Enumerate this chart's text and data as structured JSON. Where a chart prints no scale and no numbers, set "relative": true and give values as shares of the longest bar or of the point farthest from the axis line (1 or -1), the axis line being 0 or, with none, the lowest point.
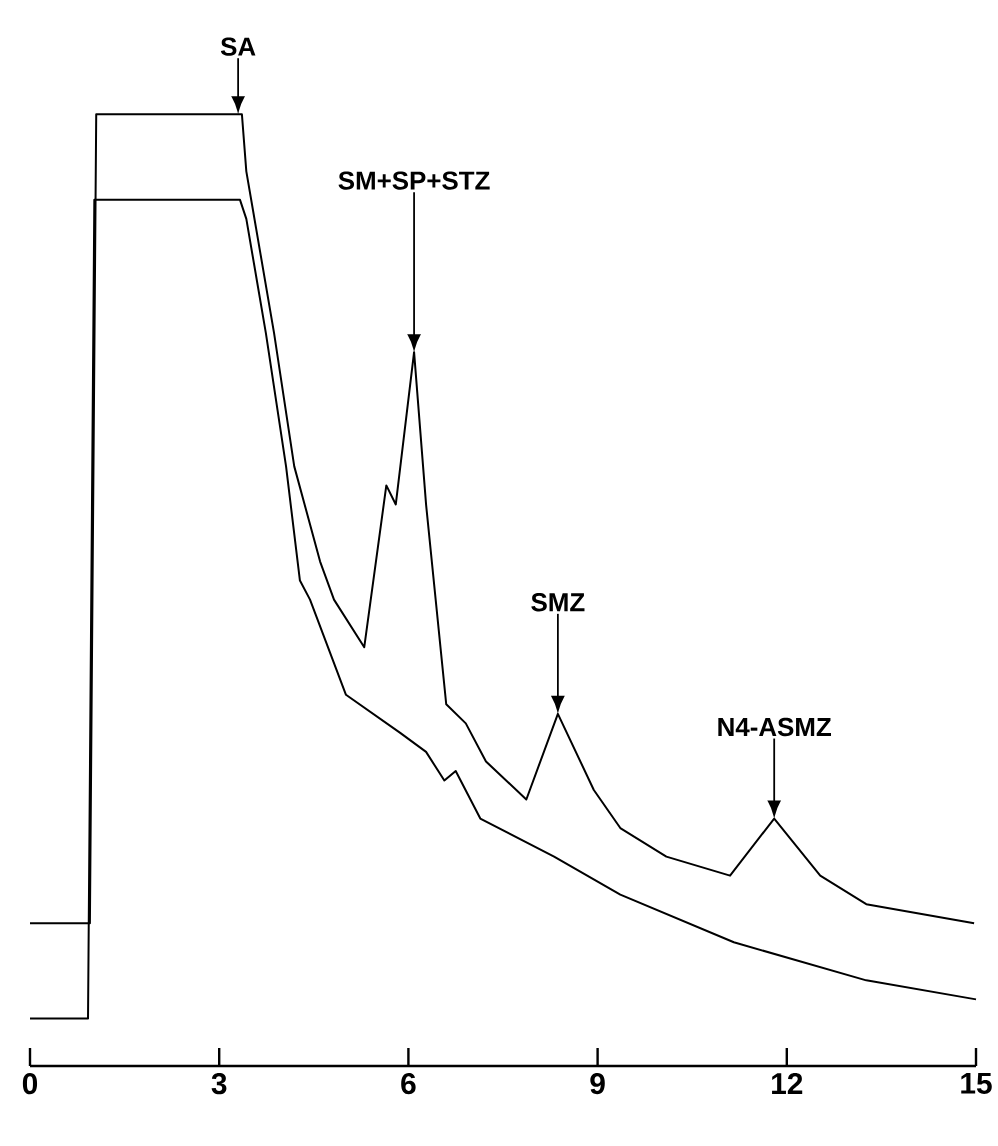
{
  "chart_data": {
    "type": "line",
    "relative": true,
    "tick_labels": "x",
    "xlim": [
      0,
      15
    ],
    "xticks": [
      0,
      3,
      6,
      9,
      12,
      15
    ],
    "series": [
      {
        "color": "#000000",
        "x": [
          0,
          0.95,
          1.05,
          3.36,
          3.43,
          3.87,
          4.19,
          4.6,
          4.82,
          5.3,
          5.65,
          5.8,
          6.09,
          6.28,
          6.6,
          6.91,
          7.23,
          7.87,
          8.37,
          8.94,
          9.36,
          10.09,
          11.1,
          11.8,
          12.53,
          13.26,
          14.97
        ],
        "values": [
          0.15,
          0.15,
          1.0,
          1.0,
          0.94,
          0.77,
          0.63,
          0.53,
          0.49,
          0.44,
          0.61,
          0.59,
          0.75,
          0.59,
          0.38,
          0.36,
          0.32,
          0.28,
          0.37,
          0.29,
          0.25,
          0.22,
          0.2,
          0.26,
          0.2,
          0.17,
          0.15
        ]
      },
      {
        "color": "#000000",
        "x": [
          0,
          0.92,
          1.02,
          3.33,
          3.43,
          3.74,
          4.06,
          4.28,
          4.44,
          5.01,
          5.87,
          6.28,
          6.57,
          6.75,
          7.14,
          8.31,
          9.36,
          11.16,
          13.26,
          15
        ],
        "values": [
          0.05,
          0.05,
          0.91,
          0.91,
          0.89,
          0.77,
          0.63,
          0.51,
          0.49,
          0.39,
          0.35,
          0.33,
          0.3,
          0.31,
          0.26,
          0.22,
          0.18,
          0.13,
          0.09,
          0.07
        ]
      }
    ],
    "annotations": [
      {
        "text": "SA",
        "x": 3.3,
        "y": 1.0
      },
      {
        "text": "SM+SP+STZ",
        "x": 6.09,
        "y": 0.75
      },
      {
        "text": "SMZ",
        "x": 8.37,
        "y": 0.37
      },
      {
        "text": "N4-ASMZ",
        "x": 11.8,
        "y": 0.26
      }
    ]
  }
}
